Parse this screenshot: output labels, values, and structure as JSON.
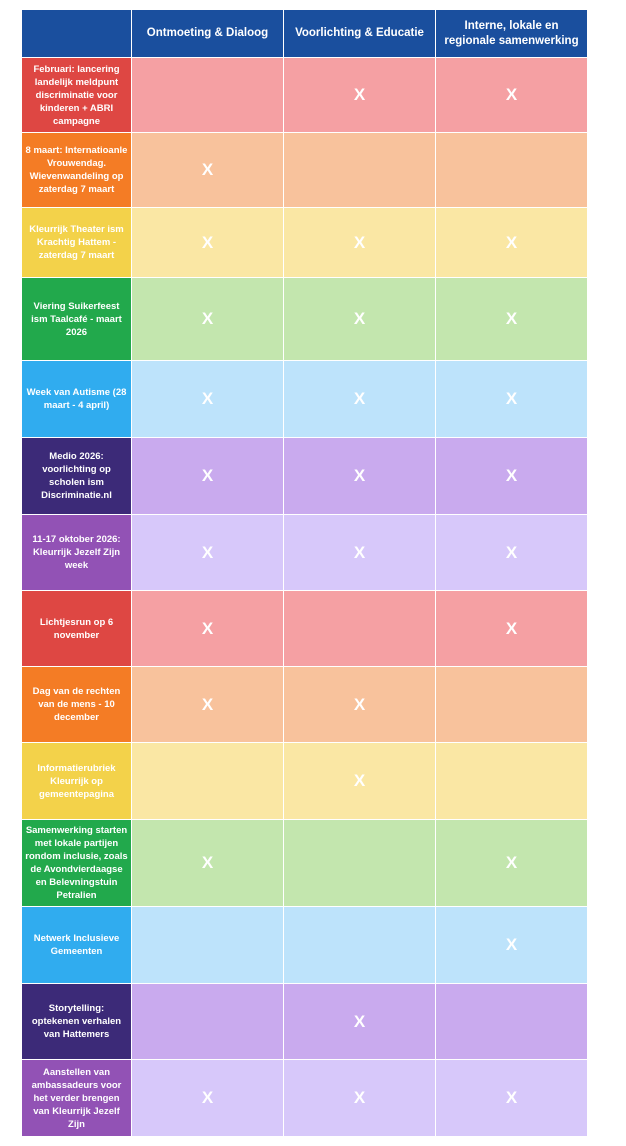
{
  "columns": [
    "",
    "Ontmoeting & Dialoog",
    "Voorlichting & Educatie",
    "Interne, lokale en regionale samenwerking"
  ],
  "mark_symbol": "X",
  "rows": [
    {
      "label": "Februari:  lancering landelijk meldpunt discriminatie voor kinderen + ABRI campagne",
      "marks": [
        false,
        true,
        true
      ],
      "label_color": "#de4743",
      "cell_color": "#f5a0a3"
    },
    {
      "label": "8 maart: Internatioanle Vrouwendag. Wievenwandeling op zaterdag 7 maart",
      "marks": [
        true,
        false,
        false
      ],
      "label_color": "#f47c25",
      "cell_color": "#f8c29c"
    },
    {
      "label": "Kleurrijk Theater ism Krachtig Hattem - zaterdag 7 maart",
      "marks": [
        true,
        true,
        true
      ],
      "label_color": "#f3d24a",
      "cell_color": "#fae7a4"
    },
    {
      "label": "Viering Suikerfeest ism Taalcafé - maart 2026",
      "marks": [
        true,
        true,
        true
      ],
      "label_color": "#22a94c",
      "cell_color": "#c3e6ae"
    },
    {
      "label": "Week van Autisme (28 maart - 4 april)",
      "marks": [
        true,
        true,
        true
      ],
      "label_color": "#30acef",
      "cell_color": "#bde3fb"
    },
    {
      "label": "Medio 2026: voorlichting op scholen ism Discriminatie.nl",
      "marks": [
        true,
        true,
        true
      ],
      "label_color": "#3c2a78",
      "cell_color": "#c9aaee"
    },
    {
      "label": "11-17 oktober 2026: Kleurrijk Jezelf Zijn week",
      "marks": [
        true,
        true,
        true
      ],
      "label_color": "#9252b5",
      "cell_color": "#d7c8fa"
    },
    {
      "label": "Lichtjesrun op 6 november",
      "marks": [
        true,
        false,
        true
      ],
      "label_color": "#de4743",
      "cell_color": "#f5a0a3"
    },
    {
      "label": "Dag van de rechten van de mens - 10 december",
      "marks": [
        true,
        true,
        false
      ],
      "label_color": "#f47c25",
      "cell_color": "#f8c29c"
    },
    {
      "label": "Informatierubriek Kleurrijk op gemeentepagina",
      "marks": [
        false,
        true,
        false
      ],
      "label_color": "#f3d24a",
      "cell_color": "#fae7a4"
    },
    {
      "label": "Samenwerking starten met lokale partijen rondom inclusie, zoals de Avondvierdaagse en Belevningstuin Petralien",
      "marks": [
        true,
        false,
        true
      ],
      "label_color": "#22a94c",
      "cell_color": "#c3e6ae"
    },
    {
      "label": "Netwerk Inclusieve Gemeenten",
      "marks": [
        false,
        false,
        true
      ],
      "label_color": "#30acef",
      "cell_color": "#bde3fb"
    },
    {
      "label": "Storytelling: optekenen verhalen van Hattemers",
      "marks": [
        false,
        true,
        false
      ],
      "label_color": "#3c2a78",
      "cell_color": "#c9aaee"
    },
    {
      "label": "Aanstellen van ambassadeurs voor het verder brengen van Kleurrijk Jezelf Zijn",
      "marks": [
        true,
        true,
        true
      ],
      "label_color": "#9252b5",
      "cell_color": "#d7c8fa"
    }
  ]
}
